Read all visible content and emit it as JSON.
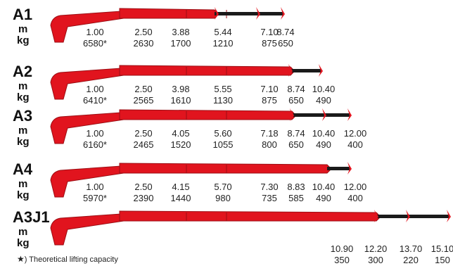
{
  "colors": {
    "boom": "#e1141e",
    "boom_dark": "#9c0e14",
    "extension": "#1a1a1a"
  },
  "unit_labels": {
    "distance": "m",
    "capacity": "kg"
  },
  "configurations": [
    {
      "name": "A1",
      "distances": [
        "1.00",
        "2.50",
        "3.88",
        "5.44",
        "7.10",
        "8.74"
      ],
      "capacities": [
        "6580*",
        "2630",
        "1700",
        "1210",
        "875",
        "650"
      ]
    },
    {
      "name": "A2",
      "distances": [
        "1.00",
        "2.50",
        "3.98",
        "5.55",
        "7.10",
        "8.74",
        "10.40"
      ],
      "capacities": [
        "6410*",
        "2565",
        "1610",
        "1130",
        "875",
        "650",
        "490"
      ]
    },
    {
      "name": "A3",
      "distances": [
        "1.00",
        "2.50",
        "4.05",
        "5.60",
        "7.18",
        "8.74",
        "10.40",
        "12.00"
      ],
      "capacities": [
        "6160*",
        "2465",
        "1520",
        "1055",
        "800",
        "650",
        "490",
        "400"
      ]
    },
    {
      "name": "A4",
      "distances": [
        "1.00",
        "2.50",
        "4.15",
        "5.70",
        "7.30",
        "8.83",
        "10.40",
        "12.00"
      ],
      "capacities": [
        "5970*",
        "2390",
        "1440",
        "980",
        "735",
        "585",
        "490",
        "400"
      ]
    },
    {
      "name": "A3J1",
      "distances": [
        "10.90",
        "12.20",
        "13.70",
        "15.10"
      ],
      "capacities": [
        "350",
        "300",
        "220",
        "150"
      ]
    }
  ],
  "footnote": {
    "star": "★",
    "text": ") Theoretical lifting capacity"
  }
}
